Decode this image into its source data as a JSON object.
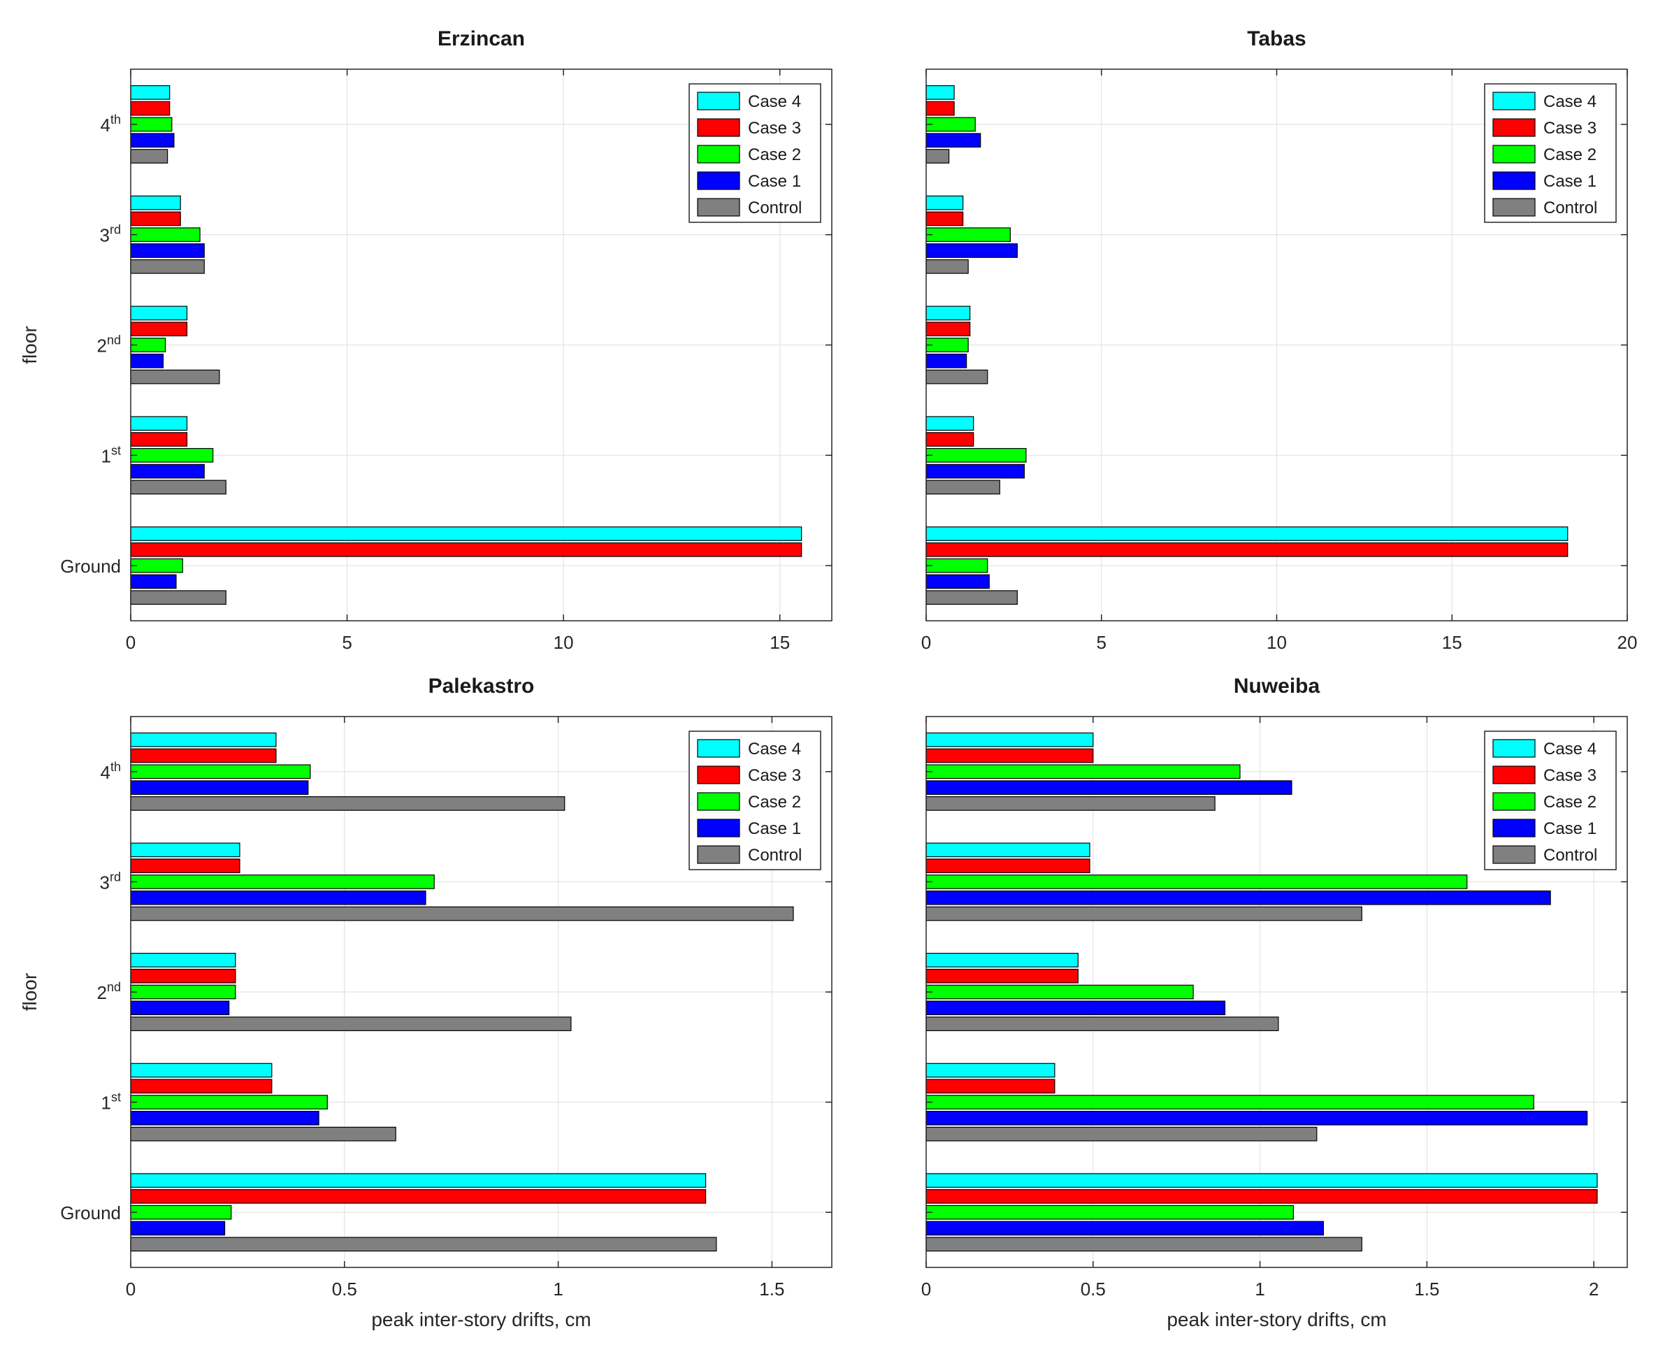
{
  "legend_entries": [
    "Case 4",
    "Case 3",
    "Case 2",
    "Case 1",
    "Control"
  ],
  "series_colors": {
    "Case 4": "#00ffff",
    "Case 3": "#ff0000",
    "Case 2": "#00ff00",
    "Case 1": "#0000ff",
    "Control": "#808080"
  },
  "chart_data": [
    {
      "type": "bar",
      "orientation": "horizontal",
      "title": "Erzincan",
      "xlabel": "",
      "ylabel": "floor",
      "categories": [
        {
          "base": "Ground",
          "sup": ""
        },
        {
          "base": "1",
          "sup": "st"
        },
        {
          "base": "2",
          "sup": "nd"
        },
        {
          "base": "3",
          "sup": "rd"
        },
        {
          "base": "4",
          "sup": "th"
        }
      ],
      "xlim": [
        0,
        16.2
      ],
      "xticks": [
        0,
        5,
        10,
        15
      ],
      "xticklabels": [
        "0",
        "5",
        "10",
        "15"
      ],
      "grid": true,
      "legend_position": "top-right",
      "series": [
        {
          "name": "Case 4",
          "values": [
            15.5,
            1.3,
            1.3,
            1.15,
            0.9
          ]
        },
        {
          "name": "Case 3",
          "values": [
            15.5,
            1.3,
            1.3,
            1.15,
            0.9
          ]
        },
        {
          "name": "Case 2",
          "values": [
            1.2,
            1.9,
            0.8,
            1.6,
            0.95
          ]
        },
        {
          "name": "Case 1",
          "values": [
            1.05,
            1.7,
            0.75,
            1.7,
            1.0
          ]
        },
        {
          "name": "Control",
          "values": [
            2.2,
            2.2,
            2.05,
            1.7,
            0.85
          ]
        }
      ]
    },
    {
      "type": "bar",
      "orientation": "horizontal",
      "title": "Tabas",
      "xlabel": "",
      "ylabel": "",
      "categories": [
        {
          "base": "Ground",
          "sup": ""
        },
        {
          "base": "1",
          "sup": "st"
        },
        {
          "base": "2",
          "sup": "nd"
        },
        {
          "base": "3",
          "sup": "rd"
        },
        {
          "base": "4",
          "sup": "th"
        }
      ],
      "xlim": [
        0,
        20
      ],
      "xticks": [
        0,
        5,
        10,
        15,
        20
      ],
      "xticklabels": [
        "0",
        "5",
        "10",
        "15",
        "20"
      ],
      "grid": true,
      "legend_position": "top-right",
      "series": [
        {
          "name": "Case 4",
          "values": [
            18.3,
            1.35,
            1.25,
            1.05,
            0.8
          ]
        },
        {
          "name": "Case 3",
          "values": [
            18.3,
            1.35,
            1.25,
            1.05,
            0.8
          ]
        },
        {
          "name": "Case 2",
          "values": [
            1.75,
            2.85,
            1.2,
            2.4,
            1.4
          ]
        },
        {
          "name": "Case 1",
          "values": [
            1.8,
            2.8,
            1.15,
            2.6,
            1.55
          ]
        },
        {
          "name": "Control",
          "values": [
            2.6,
            2.1,
            1.75,
            1.2,
            0.65
          ]
        }
      ]
    },
    {
      "type": "bar",
      "orientation": "horizontal",
      "title": "Palekastro",
      "xlabel": "peak inter-story drifts, cm",
      "ylabel": "floor",
      "categories": [
        {
          "base": "Ground",
          "sup": ""
        },
        {
          "base": "1",
          "sup": "st"
        },
        {
          "base": "2",
          "sup": "nd"
        },
        {
          "base": "3",
          "sup": "rd"
        },
        {
          "base": "4",
          "sup": "th"
        }
      ],
      "xlim": [
        0,
        1.64
      ],
      "xticks": [
        0,
        0.5,
        1,
        1.5
      ],
      "xticklabels": [
        "0",
        "0.5",
        "1",
        "1.5"
      ],
      "grid": true,
      "legend_position": "top-right",
      "series": [
        {
          "name": "Case 4",
          "values": [
            1.345,
            0.33,
            0.245,
            0.255,
            0.34
          ]
        },
        {
          "name": "Case 3",
          "values": [
            1.345,
            0.33,
            0.245,
            0.255,
            0.34
          ]
        },
        {
          "name": "Case 2",
          "values": [
            0.235,
            0.46,
            0.245,
            0.71,
            0.42
          ]
        },
        {
          "name": "Case 1",
          "values": [
            0.22,
            0.44,
            0.23,
            0.69,
            0.415
          ]
        },
        {
          "name": "Control",
          "values": [
            1.37,
            0.62,
            1.03,
            1.55,
            1.015
          ]
        }
      ]
    },
    {
      "type": "bar",
      "orientation": "horizontal",
      "title": "Nuweiba",
      "xlabel": "peak inter-story drifts, cm",
      "ylabel": "",
      "categories": [
        {
          "base": "Ground",
          "sup": ""
        },
        {
          "base": "1",
          "sup": "st"
        },
        {
          "base": "2",
          "sup": "nd"
        },
        {
          "base": "3",
          "sup": "rd"
        },
        {
          "base": "4",
          "sup": "th"
        }
      ],
      "xlim": [
        0,
        2.1
      ],
      "xticks": [
        0,
        0.5,
        1,
        1.5,
        2
      ],
      "xticklabels": [
        "0",
        "0.5",
        "1",
        "1.5",
        "2"
      ],
      "grid": true,
      "legend_position": "top-right",
      "series": [
        {
          "name": "Case 4",
          "values": [
            2.01,
            0.385,
            0.455,
            0.49,
            0.5
          ]
        },
        {
          "name": "Case 3",
          "values": [
            2.01,
            0.385,
            0.455,
            0.49,
            0.5
          ]
        },
        {
          "name": "Case 2",
          "values": [
            1.1,
            1.82,
            0.8,
            1.62,
            0.94
          ]
        },
        {
          "name": "Case 1",
          "values": [
            1.19,
            1.98,
            0.895,
            1.87,
            1.095
          ]
        },
        {
          "name": "Control",
          "values": [
            1.305,
            1.17,
            1.055,
            1.305,
            0.865
          ]
        }
      ]
    }
  ]
}
